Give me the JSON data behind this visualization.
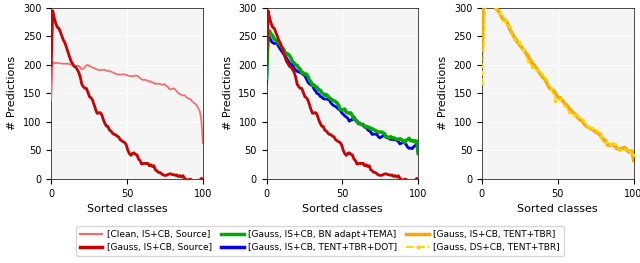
{
  "figsize": [
    6.4,
    2.63
  ],
  "dpi": 100,
  "ylim": [
    0,
    300
  ],
  "xlim": [
    0,
    100
  ],
  "yticks": [
    0,
    50,
    100,
    150,
    200,
    250,
    300
  ],
  "xticks": [
    0,
    50,
    100
  ],
  "xlabel": "Sorted classes",
  "ylabel": "# Predictions",
  "colors": {
    "clean_source": "#FF6666",
    "gauss_source": "#CC0000",
    "bn_tema": "#00AA00",
    "tent_tbr_dot": "#0000EE",
    "tent_tbr": "#FFA500",
    "ds_cb_tent_tbr": "#FFD700"
  },
  "legend": [
    {
      "label": "[Clean, IS+CB, Source]",
      "color": "#FF6666",
      "lw": 1.5,
      "ls": "-"
    },
    {
      "label": "[Gauss, IS+CB, Source]",
      "color": "#CC0000",
      "lw": 2.5,
      "ls": "-"
    },
    {
      "label": "[Gauss, IS+CB, BN adapt+TEMA]",
      "color": "#00AA00",
      "lw": 2.5,
      "ls": "-"
    },
    {
      "label": "[Gauss, IS+CB, TENT+TBR+DOT]",
      "color": "#0000EE",
      "lw": 2.5,
      "ls": "-"
    },
    {
      "label": "[Gauss, IS+CB, TENT+TBR]",
      "color": "#FFA500",
      "lw": 2.5,
      "ls": "-"
    },
    {
      "label": "[Gauss, DS+CB, TENT+TBR]",
      "color": "#FFD700",
      "lw": 1.5,
      "ls": "--",
      "marker": "."
    }
  ],
  "background": "#F5F5F5"
}
